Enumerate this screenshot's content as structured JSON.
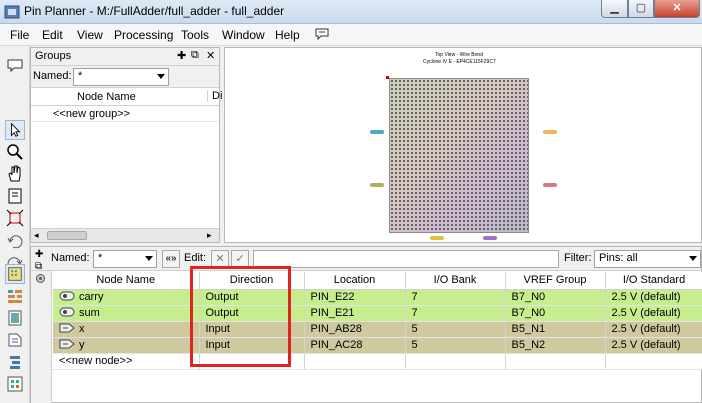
{
  "window": {
    "title": "Pin Planner - M:/FullAdder/full_adder - full_adder"
  },
  "menu": [
    "File",
    "Edit",
    "View",
    "Processing",
    "Tools",
    "Window",
    "Help"
  ],
  "groups": {
    "title": "Groups",
    "named_label": "Named:",
    "named_value": "*",
    "col_node_name": "Node Name",
    "col_direction_partial": "Di",
    "new_group": "<<new group>>"
  },
  "package": {
    "title_line1": "Top View - Wire Bond",
    "title_line2": "Cyclone IV E - EP4CE115F29C7"
  },
  "nodes": {
    "named_label": "Named:",
    "named_value": "*",
    "edit_label": "Edit:",
    "filter_label": "Filter:",
    "filter_value": "Pins: all",
    "columns": [
      "Node Name",
      "Direction",
      "Location",
      "I/O Bank",
      "VREF Group",
      "I/O Standard"
    ],
    "rows": [
      {
        "name": "carry",
        "direction": "Output",
        "location": "PIN_E22",
        "bank": "7",
        "vref": "B7_N0",
        "standard": "2.5 V (default)",
        "kind": "output"
      },
      {
        "name": "sum",
        "direction": "Output",
        "location": "PIN_E21",
        "bank": "7",
        "vref": "B7_N0",
        "standard": "2.5 V (default)",
        "kind": "output"
      },
      {
        "name": "x",
        "direction": "Input",
        "location": "PIN_AB28",
        "bank": "5",
        "vref": "B5_N1",
        "standard": "2.5 V (default)",
        "kind": "input"
      },
      {
        "name": "y",
        "direction": "Input",
        "location": "PIN_AC28",
        "bank": "5",
        "vref": "B5_N2",
        "standard": "2.5 V (default)",
        "kind": "input"
      }
    ],
    "new_node": "<<new node>>"
  },
  "colors": {
    "output_row": "#c6ee8e",
    "input_row": "#cfc9a0",
    "highlight_box": "#e02424"
  }
}
